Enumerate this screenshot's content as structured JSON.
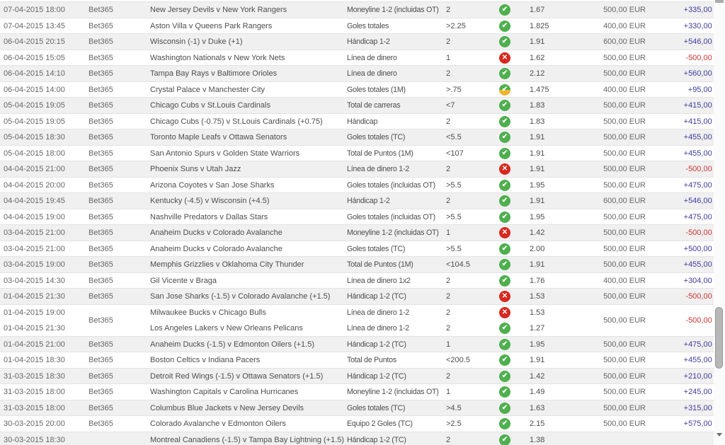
{
  "colors": {
    "row_bg": "#ffffff",
    "row_alt_bg": "#f0f0f0",
    "row_border": "#e3e3e3",
    "text": "#4d4d4d",
    "text_muted": "#666666",
    "profit_positive": "#3c3c9e",
    "profit_negative": "#cc3333",
    "icon_won": "#4db04d",
    "icon_lost": "#d9281e",
    "icon_half_won": "#eeb52c"
  },
  "icons": {
    "won": "✔",
    "lost": "✕",
    "half_won": "✔"
  },
  "table": {
    "blocks": [
      {
        "type": "single",
        "date": "07-04-2015 18:00",
        "bookmaker": "Bet365",
        "event": "New Jersey Devils v New York Rangers",
        "bet_type": "Moneyline 1-2 (incluidas OT)",
        "line": "2",
        "result": "won",
        "odds": "1.67",
        "stake": "500,00 EUR",
        "profit": "+335,00 EUR"
      },
      {
        "type": "single",
        "date": "07-04-2015 13:45",
        "bookmaker": "Bet365",
        "event": "Aston Villa v Queens Park Rangers",
        "bet_type": "Goles totales",
        "line": ">2.25",
        "result": "won",
        "odds": "1.825",
        "stake": "400,00 EUR",
        "profit": "+330,00 EUR"
      },
      {
        "type": "single",
        "date": "06-04-2015 20:15",
        "bookmaker": "Bet365",
        "event": "Wisconsin (-1) v Duke (+1)",
        "bet_type": "Hándicap 1-2",
        "line": "2",
        "result": "won",
        "odds": "1.91",
        "stake": "600,00 EUR",
        "profit": "+546,00 EUR"
      },
      {
        "type": "single",
        "date": "06-04-2015 15:05",
        "bookmaker": "Bet365",
        "event": "Washington Nationals v New York Nets",
        "bet_type": "Línea de dinero",
        "line": "1",
        "result": "lost",
        "odds": "1.62",
        "stake": "500,00 EUR",
        "profit": "-500,00 EUR"
      },
      {
        "type": "single",
        "date": "06-04-2015 14:10",
        "bookmaker": "Bet365",
        "event": "Tampa Bay Rays v Baltimore Orioles",
        "bet_type": "Línea de dinero",
        "line": "2",
        "result": "won",
        "odds": "2.12",
        "stake": "500,00 EUR",
        "profit": "+560,00 EUR"
      },
      {
        "type": "single",
        "date": "06-04-2015 14:00",
        "bookmaker": "Bet365",
        "event": "Crystal Palace v Manchester City",
        "bet_type": "Goles totales (1M)",
        "line": ">.75",
        "result": "half_won",
        "odds": "1.475",
        "stake": "400,00 EUR",
        "profit": "+95,00 EUR"
      },
      {
        "type": "single",
        "date": "05-04-2015 19:05",
        "bookmaker": "Bet365",
        "event": "Chicago Cubs v St.Louis Cardinals",
        "bet_type": "Total de carreras",
        "line": "<7",
        "result": "won",
        "odds": "1.83",
        "stake": "500,00 EUR",
        "profit": "+415,00 EUR"
      },
      {
        "type": "single",
        "date": "05-04-2015 19:05",
        "bookmaker": "Bet365",
        "event": "Chicago Cubs (-0.75) v St.Louis Cardinals (+0.75)",
        "bet_type": "Hándicap",
        "line": "2",
        "result": "won",
        "odds": "1.83",
        "stake": "500,00 EUR",
        "profit": "+415,00 EUR"
      },
      {
        "type": "single",
        "date": "05-04-2015 18:30",
        "bookmaker": "Bet365",
        "event": "Toronto Maple Leafs v Ottawa Senators",
        "bet_type": "Goles totales (TC)",
        "line": "<5.5",
        "result": "won",
        "odds": "1.91",
        "stake": "500,00 EUR",
        "profit": "+455,00 EUR"
      },
      {
        "type": "single",
        "date": "05-04-2015 18:00",
        "bookmaker": "Bet365",
        "event": "San Antonio Spurs v Golden State Warriors",
        "bet_type": "Total de Puntos (1M)",
        "line": "<107",
        "result": "won",
        "odds": "1.91",
        "stake": "500,00 EUR",
        "profit": "+455,00 EUR"
      },
      {
        "type": "single",
        "date": "04-04-2015 21:00",
        "bookmaker": "Bet365",
        "event": "Phoenix Suns v Utah Jazz",
        "bet_type": "Línea de dinero 1-2",
        "line": "2",
        "result": "lost",
        "odds": "1.91",
        "stake": "500,00 EUR",
        "profit": "-500,00 EUR"
      },
      {
        "type": "single",
        "date": "04-04-2015 20:00",
        "bookmaker": "Bet365",
        "event": "Arizona Coyotes v San Jose Sharks",
        "bet_type": "Goles totales (incluidas OT)",
        "line": ">5.5",
        "result": "won",
        "odds": "1.95",
        "stake": "500,00 EUR",
        "profit": "+475,00 EUR"
      },
      {
        "type": "single",
        "date": "04-04-2015 19:45",
        "bookmaker": "Bet365",
        "event": "Kentucky (-4.5) v Wisconsin (+4.5)",
        "bet_type": "Hándicap 1-2",
        "line": "2",
        "result": "won",
        "odds": "1.91",
        "stake": "600,00 EUR",
        "profit": "+546,00 EUR"
      },
      {
        "type": "single",
        "date": "04-04-2015 19:00",
        "bookmaker": "Bet365",
        "event": "Nashville Predators v Dallas Stars",
        "bet_type": "Goles totales (incluidas OT)",
        "line": ">5.5",
        "result": "won",
        "odds": "1.95",
        "stake": "500,00 EUR",
        "profit": "+475,00 EUR"
      },
      {
        "type": "single",
        "date": "03-04-2015 21:00",
        "bookmaker": "Bet365",
        "event": "Anaheim Ducks v Colorado Avalanche",
        "bet_type": "Moneyline 1-2 (incluidas OT)",
        "line": "1",
        "result": "lost",
        "odds": "1.42",
        "stake": "500,00 EUR",
        "profit": "-500,00 EUR"
      },
      {
        "type": "single",
        "date": "03-04-2015 21:00",
        "bookmaker": "Bet365",
        "event": "Anaheim Ducks v Colorado Avalanche",
        "bet_type": "Goles totales (TC)",
        "line": ">5.5",
        "result": "won",
        "odds": "2.00",
        "stake": "500,00 EUR",
        "profit": "+500,00 EUR"
      },
      {
        "type": "single",
        "date": "03-04-2015 19:00",
        "bookmaker": "Bet365",
        "event": "Memphis Grizzlies v Oklahoma City Thunder",
        "bet_type": "Total de Puntos (1M)",
        "line": "<104.5",
        "result": "won",
        "odds": "1.91",
        "stake": "500,00 EUR",
        "profit": "+455,00 EUR"
      },
      {
        "type": "single",
        "date": "03-04-2015 14:30",
        "bookmaker": "Bet365",
        "event": "Gil Vicente v Braga",
        "bet_type": "Línea de dinero 1x2",
        "line": "2",
        "result": "won",
        "odds": "1.76",
        "stake": "400,00 EUR",
        "profit": "+304,00 EUR"
      },
      {
        "type": "single",
        "date": "01-04-2015 21:30",
        "bookmaker": "Bet365",
        "event": "San Jose Sharks (-1.5) v Colorado Avalanche (+1.5)",
        "bet_type": "Hándicap 1-2 (TC)",
        "line": "2",
        "result": "lost",
        "odds": "1.53",
        "stake": "500,00 EUR",
        "profit": "-500,00 EUR"
      },
      {
        "type": "combo",
        "bookmaker": "Bet365",
        "stake": "500,00 EUR",
        "profit": "-500,00 EUR",
        "legs": [
          {
            "date": "01-04-2015 19:00",
            "event": "Milwaukee Bucks v Chicago Bulls",
            "bet_type": "Línea de dinero 1-2",
            "line": "2",
            "result": "lost",
            "odds": "1.53"
          },
          {
            "date": "01-04-2015 21:30",
            "event": "Los Angeles Lakers v New Orleans Pelicans",
            "bet_type": "Línea de dinero 1-2",
            "line": "2",
            "result": "won",
            "odds": "1.27"
          }
        ]
      },
      {
        "type": "single",
        "date": "01-04-2015 21:00",
        "bookmaker": "Bet365",
        "event": "Anaheim Ducks (-1.5) v Edmonton Oilers (+1.5)",
        "bet_type": "Hándicap 1-2 (TC)",
        "line": "1",
        "result": "won",
        "odds": "1.95",
        "stake": "500,00 EUR",
        "profit": "+475,00 EUR"
      },
      {
        "type": "single",
        "date": "01-04-2015 18:30",
        "bookmaker": "Bet365",
        "event": "Boston Celtics v Indiana Pacers",
        "bet_type": "Total de Puntos",
        "line": "<200.5",
        "result": "won",
        "odds": "1.91",
        "stake": "500,00 EUR",
        "profit": "+455,00 EUR"
      },
      {
        "type": "single",
        "date": "31-03-2015 18:30",
        "bookmaker": "Bet365",
        "event": "Detroit Red Wings (-1.5) v Ottawa Senators (+1.5)",
        "bet_type": "Hándicap 1-2 (TC)",
        "line": "2",
        "result": "won",
        "odds": "1.42",
        "stake": "500,00 EUR",
        "profit": "+210,00 EUR"
      },
      {
        "type": "single",
        "date": "31-03-2015 18:00",
        "bookmaker": "Bet365",
        "event": "Washington Capitals v Carolina Hurricanes",
        "bet_type": "Moneyline 1-2 (incluidas OT)",
        "line": "1",
        "result": "won",
        "odds": "1.49",
        "stake": "500,00 EUR",
        "profit": "+245,00 EUR"
      },
      {
        "type": "single",
        "date": "31-03-2015 18:00",
        "bookmaker": "Bet365",
        "event": "Columbus Blue Jackets v New Jersey Devils",
        "bet_type": "Goles totales (TC)",
        "line": ">4.5",
        "result": "won",
        "odds": "1.63",
        "stake": "500,00 EUR",
        "profit": "+315,00 EUR"
      },
      {
        "type": "single",
        "date": "30-03-2015 20:00",
        "bookmaker": "Bet365",
        "event": "Colorado Avalanche v Edmonton Oilers",
        "bet_type": "Equipo 2 Goles (TC)",
        "line": ">2.5",
        "result": "won",
        "odds": "2.15",
        "stake": "500,00 EUR",
        "profit": "+575,00 EUR"
      },
      {
        "type": "combo",
        "bookmaker": "",
        "stake": "",
        "profit": "",
        "legs": [
          {
            "date": "30-03-2015 18:30",
            "event": "Montreal Canadiens (-1.5) v Tampa Bay Lightning (+1.5)",
            "bet_type": "Hándicap 1-2 (TC)",
            "line": "2",
            "result": "won",
            "odds": "1.38"
          }
        ]
      }
    ]
  }
}
